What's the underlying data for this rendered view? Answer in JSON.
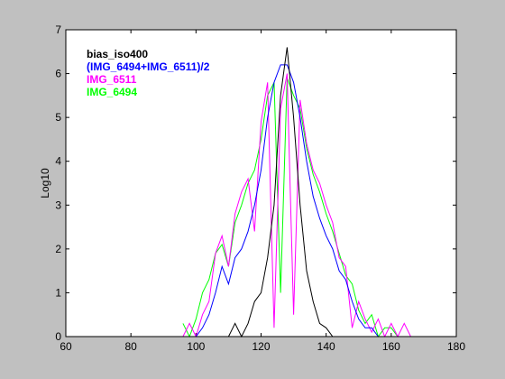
{
  "chart_data": {
    "type": "line",
    "y_label": "Log10",
    "x": [
      96,
      98,
      100,
      102,
      104,
      106,
      108,
      110,
      112,
      114,
      116,
      118,
      120,
      122,
      124,
      126,
      128,
      130,
      132,
      134,
      136,
      138,
      140,
      142,
      144,
      146,
      148,
      150,
      152,
      154,
      156,
      158,
      160,
      162,
      164,
      166
    ],
    "series": [
      {
        "name": "IMG_6494",
        "color": "#00ff00",
        "values": [
          0.3,
          0,
          0.4,
          1,
          1.3,
          1.9,
          2.1,
          1.6,
          2.6,
          3.0,
          3.5,
          3.8,
          4.5,
          5.5,
          5.8,
          1,
          5.9,
          5.5,
          5.2,
          4.3,
          3.7,
          3.3,
          2.8,
          2.4,
          1.9,
          1.4,
          1.2,
          0.6,
          0.3,
          0.5,
          0,
          0.2,
          0.2,
          0,
          0,
          0
        ]
      },
      {
        "name": "IMG_6511",
        "color": "#ff00ff",
        "values": [
          0,
          0.3,
          0,
          0.5,
          0.8,
          1.9,
          2.3,
          1.6,
          2.8,
          3.3,
          3.6,
          2.4,
          4.9,
          5.8,
          0.2,
          5.2,
          6,
          0.5,
          5.4,
          4.4,
          3.8,
          3.5,
          3.0,
          2.6,
          1.8,
          1.6,
          0.2,
          0.8,
          0.4,
          0.1,
          0.4,
          0,
          0.3,
          0,
          0.3,
          0
        ]
      },
      {
        "name": "(IMG_6494+IMG_6511)/2",
        "color": "#0000ff",
        "values": [
          null,
          null,
          0,
          0.2,
          0.5,
          1,
          1.6,
          1.2,
          1.8,
          2,
          2.4,
          3,
          3.8,
          5,
          5.8,
          6.2,
          6.2,
          5.8,
          5,
          4,
          3.2,
          2.7,
          2.3,
          2,
          1.5,
          1.3,
          0.8,
          0.4,
          0.2,
          0.2,
          0,
          null,
          null,
          null,
          null,
          null
        ]
      },
      {
        "name": "bias_iso400",
        "color": "#000000",
        "values": [
          null,
          null,
          null,
          null,
          null,
          null,
          0,
          0,
          0.3,
          0,
          0.3,
          0.8,
          1,
          1.8,
          3,
          5.5,
          6.6,
          5,
          3,
          1.5,
          0.8,
          0.3,
          0.2,
          0,
          0,
          null,
          null,
          null,
          null,
          null,
          null,
          null,
          null,
          null,
          null,
          null
        ]
      }
    ],
    "xlim": [
      60,
      180
    ],
    "xticks": [
      60,
      80,
      100,
      120,
      140,
      160,
      180
    ],
    "ylim": [
      0,
      7
    ],
    "yticks": [
      0,
      1,
      2,
      3,
      4,
      5,
      6,
      7
    ]
  }
}
